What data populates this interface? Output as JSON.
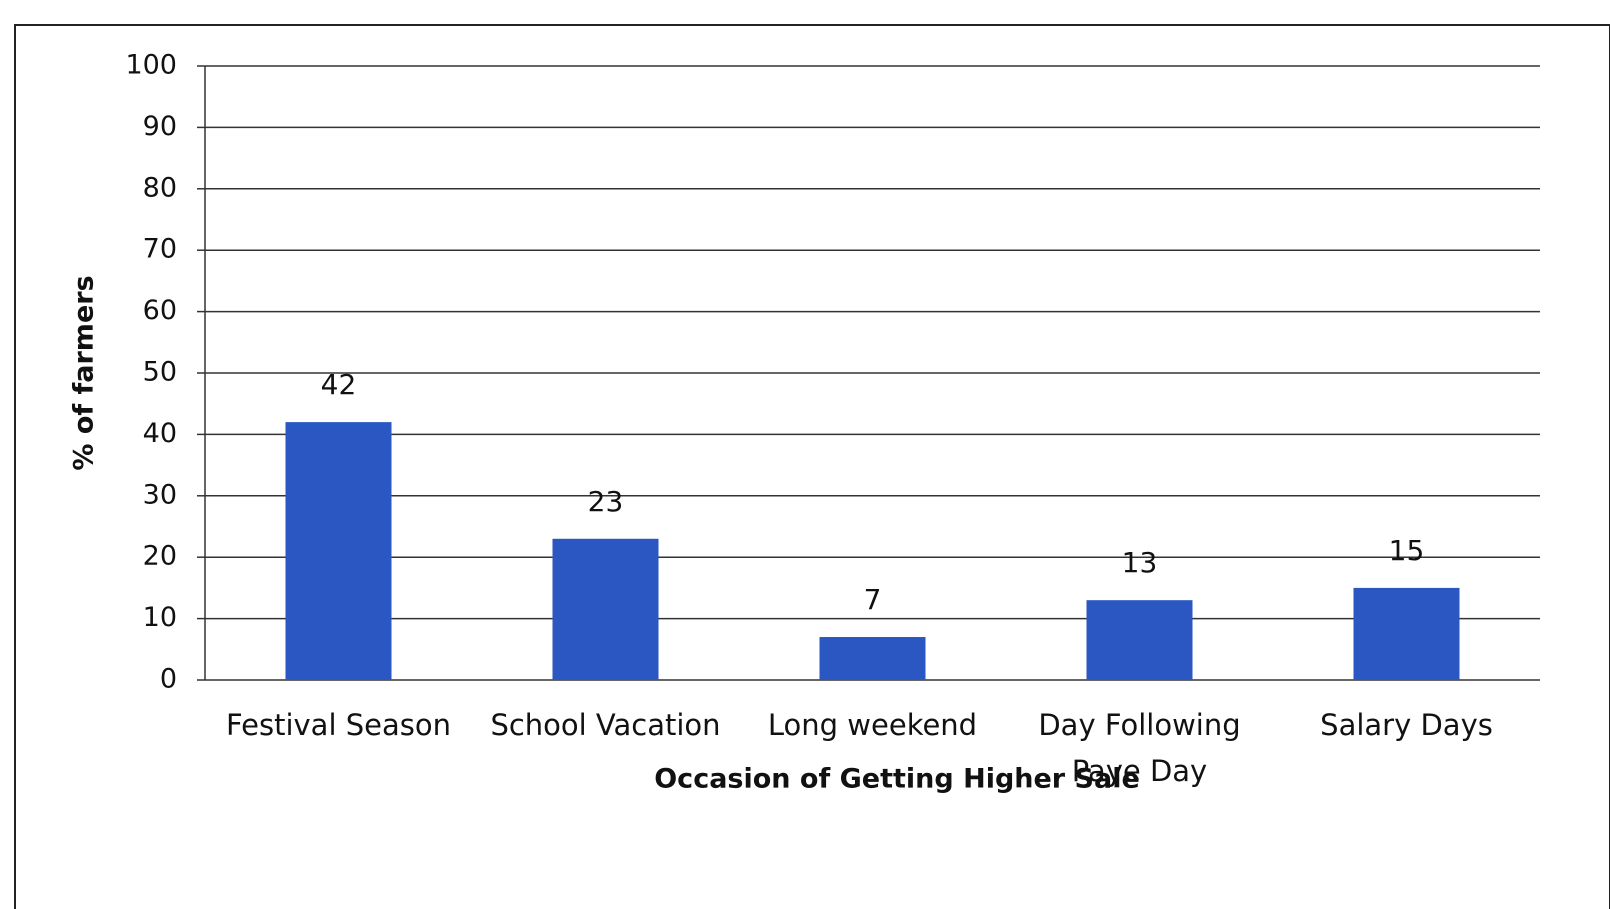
{
  "chart_data": {
    "type": "bar",
    "categories": [
      "Festival Season",
      "School Vacation",
      "Long weekend",
      "Day Following Paye Day",
      "Salary Days"
    ],
    "values": [
      42,
      23,
      7,
      13,
      15
    ],
    "color": "#2b57c2",
    "ylim": [
      0,
      100
    ],
    "yticks": [
      0,
      10,
      20,
      30,
      40,
      50,
      60,
      70,
      80,
      90,
      100
    ],
    "grid": true,
    "xlabel": "Occasion of Getting  Higher Sale",
    "ylabel": "% of farmers"
  }
}
